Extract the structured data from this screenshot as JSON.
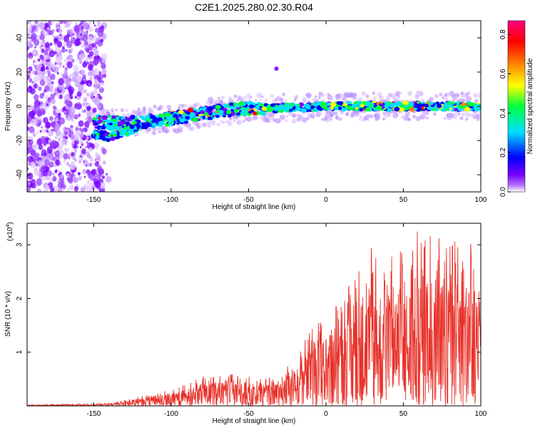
{
  "figure_title": "C2E1.2025.280.02.30.R04",
  "chart_data": [
    {
      "type": "heatmap",
      "title": "C2E1.2025.280.02.30.R04",
      "xlabel": "Height of straight line (km)",
      "ylabel": "Frequency (Hz)",
      "xlim": [
        -193,
        100
      ],
      "ylim": [
        -50,
        50
      ],
      "xticks": [
        -150,
        -100,
        -50,
        0,
        50,
        100
      ],
      "yticks": [
        -40,
        -20,
        0,
        20,
        40
      ],
      "colorbar": {
        "label": "Normalized spectral amplitude",
        "range": [
          0.0,
          0.87
        ],
        "ticks": [
          0.0,
          0.2,
          0.4,
          0.6,
          0.8
        ],
        "colormap": [
          "#ffffff",
          "#7a00ff",
          "#0000ff",
          "#00e0ff",
          "#00ff40",
          "#ffff00",
          "#ff8000",
          "#ff0000",
          "#ff0080"
        ]
      },
      "features": [
        {
          "name": "noise region",
          "x_range": [
            -193,
            -143
          ],
          "y_range": [
            -50,
            50
          ]
        },
        {
          "name": "main trace",
          "x": [
            -150,
            -130,
            -110,
            -90,
            -70,
            -50,
            -30,
            0,
            50,
            100
          ],
          "y": [
            -9,
            -10,
            -8,
            -6,
            -3,
            -1,
            -1,
            0,
            0,
            0
          ]
        },
        {
          "name": "lower trace",
          "x": [
            -150,
            -140,
            -130,
            -120
          ],
          "y": [
            -16,
            -18,
            -15,
            -12
          ]
        },
        {
          "name": "isolated spot",
          "x": -32,
          "y": 22
        }
      ]
    },
    {
      "type": "line",
      "xlabel": "Height of straight line (km)",
      "ylabel": "SNR (10 * v/v)",
      "y_multiplier": "(x10^4)",
      "multiplier_base": "(x10",
      "multiplier_exp": "4",
      "multiplier_close": ")",
      "xlim": [
        -193,
        100
      ],
      "ylim": [
        0,
        3.4
      ],
      "xticks": [
        -150,
        -100,
        -50,
        0,
        50,
        100
      ],
      "yticks": [
        1,
        2,
        3
      ],
      "series_color": "#e8322a",
      "envelope": {
        "x": [
          -193,
          -140,
          -125,
          -110,
          -100,
          -80,
          -60,
          -40,
          -28,
          -22,
          -15,
          -5,
          10,
          20,
          30,
          40,
          50,
          60,
          70,
          80,
          90,
          100
        ],
        "y": [
          0.02,
          0.05,
          0.15,
          0.25,
          0.3,
          0.55,
          0.6,
          0.5,
          0.55,
          0.9,
          1.2,
          1.6,
          2.0,
          2.5,
          3.1,
          2.9,
          3.0,
          3.3,
          3.3,
          3.1,
          3.3,
          2.6
        ]
      }
    }
  ]
}
